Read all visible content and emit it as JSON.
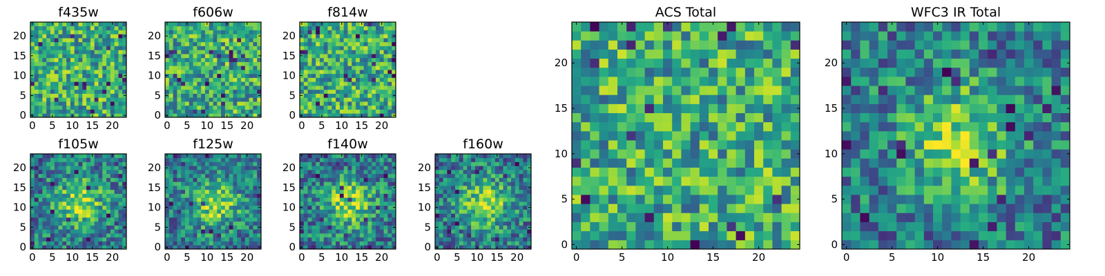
{
  "colormap": "viridis",
  "colors": {
    "low": "#440154",
    "mid": "#21908d",
    "high": "#fde725",
    "frame": "#000000"
  },
  "chart_data": [
    {
      "type": "heatmap",
      "title": "f435w",
      "size": 24,
      "xticks": [
        "0",
        "5",
        "10",
        "15",
        "20"
      ],
      "yticks": [
        "0",
        "5",
        "10",
        "15",
        "20"
      ],
      "pattern": "noise",
      "seed": 11
    },
    {
      "type": "heatmap",
      "title": "f606w",
      "size": 24,
      "xticks": [
        "0",
        "5",
        "10",
        "15",
        "20"
      ],
      "yticks": [
        "0",
        "5",
        "10",
        "15",
        "20"
      ],
      "pattern": "noise",
      "seed": 23
    },
    {
      "type": "heatmap",
      "title": "f814w",
      "size": 24,
      "xticks": [
        "0",
        "5",
        "10",
        "15",
        "20"
      ],
      "yticks": [
        "0",
        "5",
        "10",
        "15",
        "20"
      ],
      "pattern": "noise",
      "seed": 37
    },
    {
      "type": "heatmap",
      "title": "f105w",
      "size": 24,
      "xticks": [
        "0",
        "5",
        "10",
        "15",
        "20"
      ],
      "yticks": [
        "0",
        "5",
        "10",
        "15",
        "20"
      ],
      "pattern": "central-source",
      "seed": 41
    },
    {
      "type": "heatmap",
      "title": "f125w",
      "size": 24,
      "xticks": [
        "0",
        "5",
        "10",
        "15",
        "20"
      ],
      "yticks": [
        "0",
        "5",
        "10",
        "15",
        "20"
      ],
      "pattern": "central-source",
      "seed": 53
    },
    {
      "type": "heatmap",
      "title": "f140w",
      "size": 24,
      "xticks": [
        "0",
        "5",
        "10",
        "15",
        "20"
      ],
      "yticks": [
        "0",
        "5",
        "10",
        "15",
        "20"
      ],
      "pattern": "central-source",
      "seed": 67
    },
    {
      "type": "heatmap",
      "title": "f160w",
      "size": 24,
      "xticks": [
        "0",
        "5",
        "10",
        "15",
        "20"
      ],
      "yticks": [
        "0",
        "5",
        "10",
        "15",
        "20"
      ],
      "pattern": "central-source",
      "seed": 79
    },
    {
      "type": "heatmap",
      "title": "ACS Total",
      "size": 25,
      "xticks": [
        "0",
        "5",
        "10",
        "15",
        "20"
      ],
      "yticks": [
        "0",
        "5",
        "10",
        "15",
        "20"
      ],
      "pattern": "noise",
      "seed": 97
    },
    {
      "type": "heatmap",
      "title": "WFC3 IR Total",
      "size": 25,
      "xticks": [
        "0",
        "5",
        "10",
        "15",
        "20"
      ],
      "yticks": [
        "0",
        "5",
        "10",
        "15",
        "20"
      ],
      "pattern": "central-source",
      "seed": 131
    }
  ]
}
